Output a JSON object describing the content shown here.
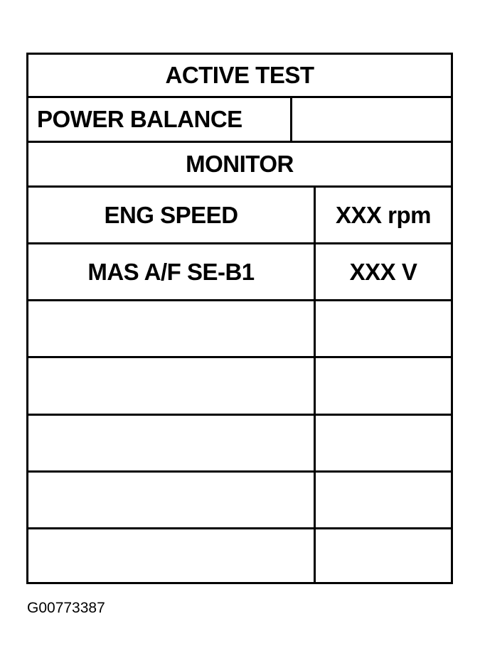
{
  "screen": {
    "title": "ACTIVE TEST",
    "test_item": "POWER BALANCE",
    "test_value": "",
    "section": "MONITOR",
    "monitor_rows": [
      {
        "item": "ENG SPEED",
        "value": "XXX rpm"
      },
      {
        "item": "MAS A/F SE-B1",
        "value": "XXX V"
      },
      {
        "item": "",
        "value": ""
      },
      {
        "item": "",
        "value": ""
      },
      {
        "item": "",
        "value": ""
      },
      {
        "item": "",
        "value": ""
      },
      {
        "item": "",
        "value": ""
      }
    ]
  },
  "figure_id": "G00773387"
}
